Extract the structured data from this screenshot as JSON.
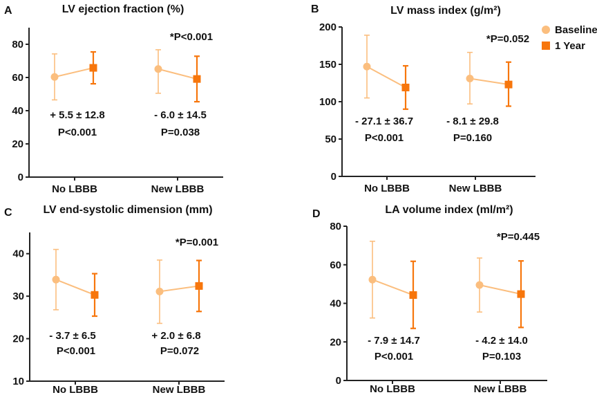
{
  "colors": {
    "baseline": "#FBBE7E",
    "one_year": "#F7760C"
  },
  "legend": [
    {
      "name": "Baseline",
      "marker": "circle"
    },
    {
      "name": "1 Year",
      "marker": "square"
    }
  ],
  "chart_data": [
    {
      "panel": "A",
      "type": "line",
      "title": "LV ejection fraction (%)",
      "categories": [
        "No LBBB",
        "New LBBB"
      ],
      "ylim": [
        0,
        90
      ],
      "yticks": [
        0,
        20,
        40,
        60,
        80
      ],
      "series": [
        {
          "name": "Baseline",
          "values": [
            60.3,
            65.1
          ],
          "err_low": [
            46.5,
            50.5
          ],
          "err_high": [
            74.2,
            76.7
          ]
        },
        {
          "name": "1 Year",
          "values": [
            65.8,
            59.1
          ],
          "err_low": [
            56.2,
            45.4
          ],
          "err_high": [
            75.4,
            72.8
          ]
        }
      ],
      "group_p": "*P<0.001",
      "changes": [
        "+ 5.5 ± 12.8",
        "- 6.0 ± 14.5"
      ],
      "p_values": [
        "P<0.001",
        "P=0.038"
      ]
    },
    {
      "panel": "B",
      "type": "line",
      "title": "LV mass index (g/m²)",
      "categories": [
        "No LBBB",
        "New LBBB"
      ],
      "ylim": [
        0,
        200
      ],
      "yticks": [
        0,
        50,
        100,
        150,
        200
      ],
      "series": [
        {
          "name": "Baseline",
          "values": [
            147,
            131
          ],
          "err_low": [
            105,
            97
          ],
          "err_high": [
            189,
            166
          ]
        },
        {
          "name": "1 Year",
          "values": [
            119,
            123
          ],
          "err_low": [
            90,
            94
          ],
          "err_high": [
            148,
            153
          ]
        }
      ],
      "group_p": "*P=0.052",
      "changes": [
        "- 27.1 ± 36.7",
        "- 8.1 ± 29.8"
      ],
      "p_values": [
        "P<0.001",
        "P=0.160"
      ]
    },
    {
      "panel": "C",
      "type": "line",
      "title": "LV end-systolic dimension (mm)",
      "categories": [
        "No LBBB",
        "New LBBB"
      ],
      "ylim": [
        10,
        45
      ],
      "yticks": [
        10,
        20,
        30,
        40
      ],
      "series": [
        {
          "name": "Baseline",
          "values": [
            33.9,
            31.1
          ],
          "err_low": [
            26.8,
            23.6
          ],
          "err_high": [
            41.0,
            38.5
          ]
        },
        {
          "name": "1 Year",
          "values": [
            30.3,
            32.4
          ],
          "err_low": [
            25.3,
            26.4
          ],
          "err_high": [
            35.3,
            38.4
          ]
        }
      ],
      "group_p": "*P=0.001",
      "changes": [
        "- 3.7 ± 6.5",
        "+ 2.0 ± 6.8"
      ],
      "p_values": [
        "P<0.001",
        "P=0.072"
      ]
    },
    {
      "panel": "D",
      "type": "line",
      "title": "LA volume index (ml/m²)",
      "categories": [
        "No LBBB",
        "New LBBB"
      ],
      "ylim": [
        0,
        80
      ],
      "yticks": [
        0,
        20,
        40,
        60,
        80
      ],
      "series": [
        {
          "name": "Baseline",
          "values": [
            52.3,
            49.5
          ],
          "err_low": [
            32.4,
            35.5
          ],
          "err_high": [
            72.2,
            63.5
          ]
        },
        {
          "name": "1 Year",
          "values": [
            44.3,
            44.8
          ],
          "err_low": [
            27.0,
            27.5
          ],
          "err_high": [
            61.8,
            62.0
          ]
        }
      ],
      "group_p": "*P=0.445",
      "changes": [
        "- 7.9 ± 14.7",
        "- 4.2 ± 14.0"
      ],
      "p_values": [
        "P<0.001",
        "P=0.103"
      ]
    }
  ]
}
